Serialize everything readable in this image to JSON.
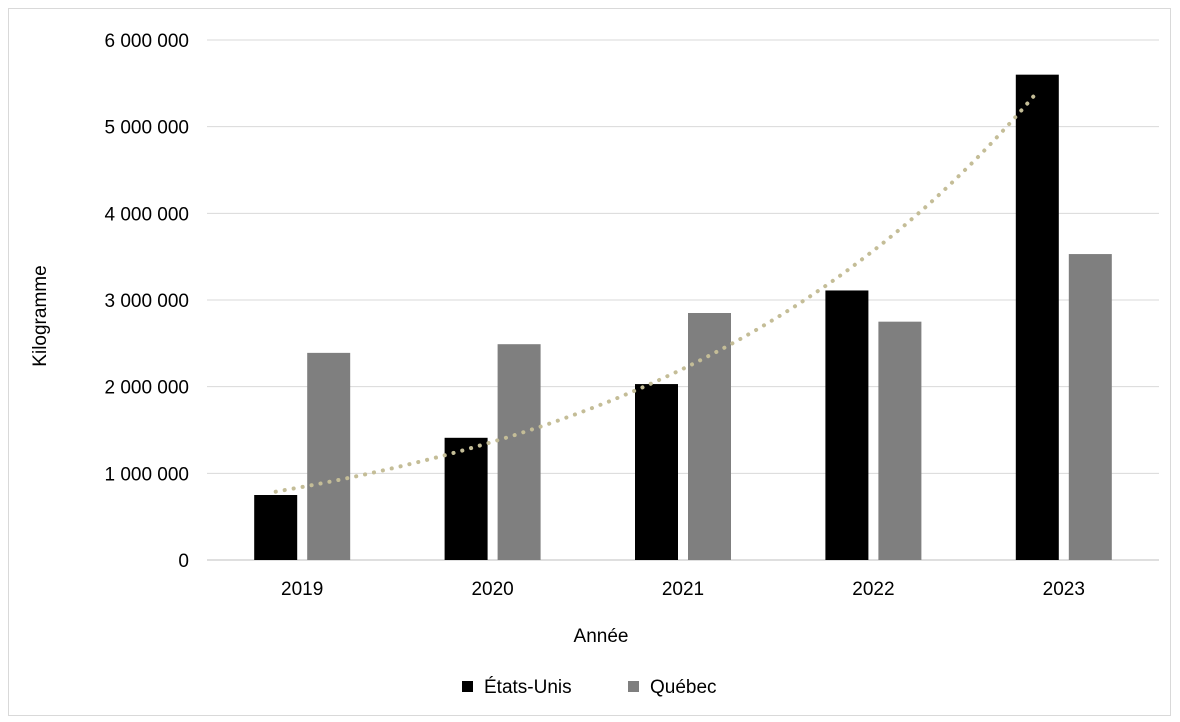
{
  "chart_data": {
    "type": "bar",
    "title": "",
    "xlabel": "Année",
    "ylabel": "Kilogramme",
    "categories": [
      "2019",
      "2020",
      "2021",
      "2022",
      "2023"
    ],
    "series": [
      {
        "name": "États-Unis",
        "color": "#000000",
        "values": [
          750000,
          1410000,
          2030000,
          3110000,
          5600000
        ]
      },
      {
        "name": "Québec",
        "color": "#7f7f7f",
        "values": [
          2390000,
          2490000,
          2850000,
          2750000,
          3530000
        ]
      }
    ],
    "trendline": {
      "series": "États-Unis",
      "kind": "exponential",
      "style": "dotted",
      "color": "#c4bd97"
    },
    "ylim": [
      0,
      6000000
    ],
    "yticks": [
      0,
      1000000,
      2000000,
      3000000,
      4000000,
      5000000,
      6000000
    ],
    "ytick_labels": [
      "0",
      "1 000 000",
      "2 000 000",
      "3 000 000",
      "4 000 000",
      "5 000 000",
      "6 000 000"
    ],
    "grid": true,
    "legend_position": "bottom"
  }
}
